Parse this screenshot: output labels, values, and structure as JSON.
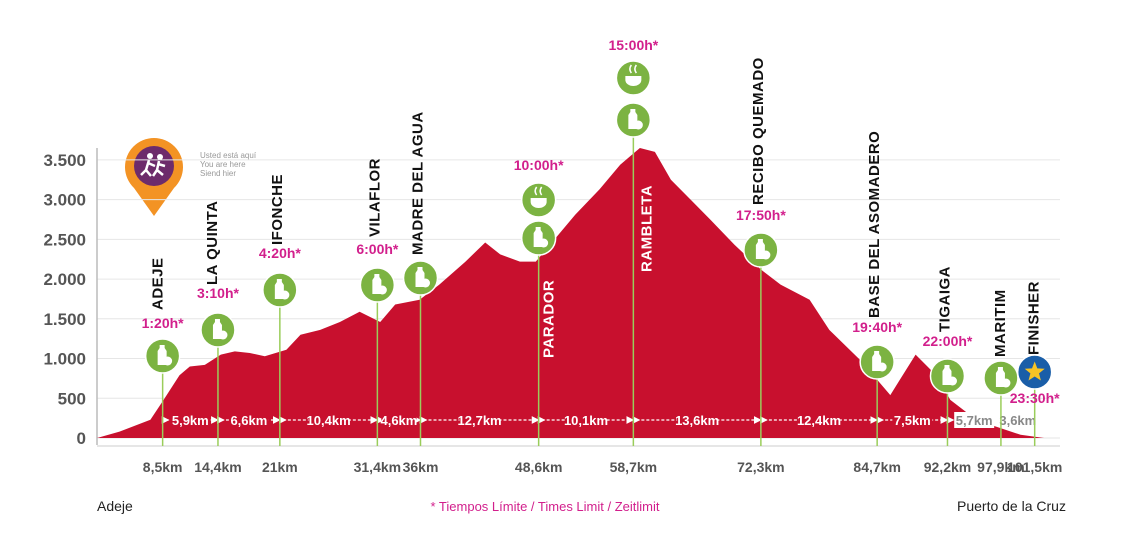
{
  "chart_data": {
    "type": "area",
    "color": "#c8102e",
    "grid": true,
    "x": [
      1.5,
      3.9,
      7.2,
      8.6,
      10.3,
      11.4,
      13.0,
      14.7,
      16.2,
      17.8,
      19.4,
      21.7,
      23.2,
      25.3,
      27.4,
      29.5,
      31.7,
      33.3,
      35.9,
      38.0,
      40.8,
      42.9,
      44.5,
      46.6,
      48.3,
      49.8,
      52.5,
      55.1,
      57.3,
      59.4,
      61.0,
      62.7,
      64.8,
      66.9,
      69.5,
      72.3,
      74.4,
      77.5,
      79.6,
      82.9,
      86.1,
      87.1,
      88.8,
      90.9,
      92.5,
      94.6,
      96.7,
      100.0,
      102.5
    ],
    "values": [
      0,
      80,
      230,
      480,
      790,
      900,
      920,
      1050,
      1090,
      1070,
      1030,
      1110,
      1300,
      1360,
      1460,
      1590,
      1460,
      1680,
      1740,
      1930,
      2220,
      2460,
      2310,
      2220,
      2220,
      2430,
      2810,
      3130,
      3440,
      3650,
      3600,
      3250,
      3000,
      2750,
      2430,
      2120,
      1930,
      1740,
      1360,
      980,
      540,
      730,
      1050,
      800,
      480,
      290,
      170,
      40,
      0
    ],
    "xlim": [
      1.5,
      104.2
    ],
    "ylim": [
      0,
      3700
    ],
    "yticks": [
      0,
      500,
      {
        "value": 1000,
        "label": "1.000"
      },
      {
        "value": 1500,
        "label": "1.500"
      },
      {
        "value": 2000,
        "label": "2.000"
      },
      {
        "value": 2500,
        "label": "2.500"
      },
      {
        "value": 3000,
        "label": "3.000"
      },
      {
        "value": 3500,
        "label": "3.500"
      }
    ],
    "xticks": [
      {
        "value": 8.5,
        "label": "8,5km"
      },
      {
        "value": 14.4,
        "label": "14,4km"
      },
      {
        "value": 21,
        "label": "21km"
      },
      {
        "value": 31.4,
        "label": "31,4km"
      },
      {
        "value": 36,
        "label": "36km"
      },
      {
        "value": 48.6,
        "label": "48,6km"
      },
      {
        "value": 58.7,
        "label": "58,7km"
      },
      {
        "value": 72.3,
        "label": "72,3km"
      },
      {
        "value": 84.7,
        "label": "84,7km"
      },
      {
        "value": 92.2,
        "label": "92,2km"
      },
      {
        "value": 97.9,
        "label": "97,9km"
      },
      {
        "value": 101.5,
        "label": "101,5km"
      }
    ],
    "checkpoints": [
      {
        "name": "ADEJE",
        "time": "1:20h*"
      },
      {
        "name": "LA QUINTA",
        "time": "3:10h*"
      },
      {
        "name": "IFONCHE",
        "time": "4:20h*"
      },
      {
        "name": "VILAFLOR",
        "time": "6:00h*"
      },
      {
        "name": "MADRE DEL AGUA"
      },
      {
        "name": "PARADOR",
        "time": "10:00h*"
      },
      {
        "name": "RAMBLETA",
        "time": "15:00h*"
      },
      {
        "name": "RECIBO QUEMADO",
        "time": "17:50h*"
      },
      {
        "name": "BASE DEL ASOMADERO",
        "time": "19:40h*"
      },
      {
        "name": "TIGAIGA",
        "time": "22:00h*"
      },
      {
        "name": "MARITIM"
      },
      {
        "name": "FINISHER",
        "time": "23:30h*"
      }
    ],
    "segments": [
      {
        "value": 5.9,
        "label": "5,9km"
      },
      {
        "value": 6.6,
        "label": "6,6km"
      },
      {
        "value": 10.4,
        "label": "10,4km"
      },
      {
        "value": 4.6,
        "label": "4,6km"
      },
      {
        "value": 12.7,
        "label": "12,7km"
      },
      {
        "value": 10.1,
        "label": "10,1km"
      },
      {
        "value": 13.6,
        "label": "13,6km"
      },
      {
        "value": 12.4,
        "label": "12,4km"
      },
      {
        "value": 7.5,
        "label": "7,5km"
      },
      {
        "value": 5.7,
        "label": "5,7km"
      },
      {
        "value": 3.6,
        "label": "3,6km"
      }
    ],
    "start_label": "Adeje",
    "end_label": "Puerto de la Cruz",
    "footnote": "* Tiempos Límite / Times Limit / Zeitlimit",
    "you_are_here": [
      "Usted está aquí",
      "You are here",
      "Siend hier"
    ]
  }
}
